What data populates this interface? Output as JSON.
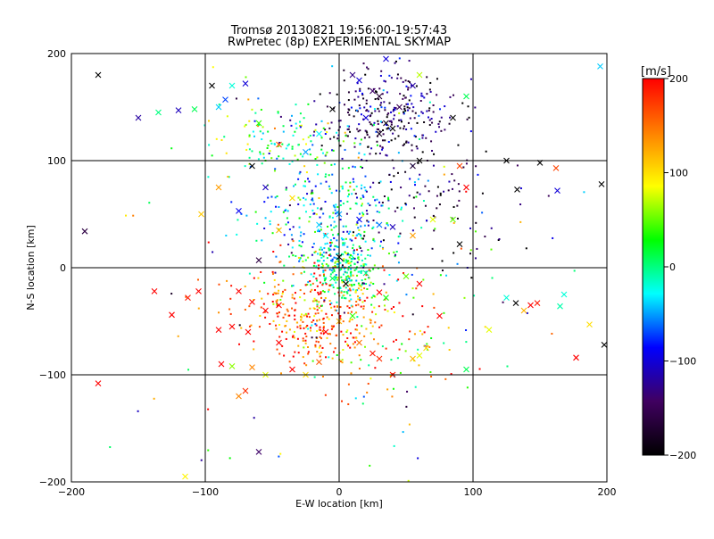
{
  "chart_data": {
    "type": "scatter",
    "title": "Tromsø 20130821 19:56:00-19:57:43",
    "subtitle": "RwPretec (8p) EXPERIMENTAL SKYMAP",
    "xlabel": "E-W location [km]",
    "ylabel": "N-S location [km]",
    "xlim": [
      -200,
      200
    ],
    "ylim": [
      -200,
      200
    ],
    "x_ticks": [
      -200,
      -100,
      0,
      100,
      200
    ],
    "x_tick_labels": [
      "−200",
      "−100",
      "0",
      "100",
      "200"
    ],
    "y_ticks": [
      -200,
      -100,
      0,
      100,
      200
    ],
    "y_tick_labels": [
      "−200",
      "−100",
      "0",
      "100",
      "200"
    ],
    "grid": true,
    "colorbar": {
      "label": "[m/s]",
      "min": -200,
      "max": 200,
      "ticks": [
        200,
        100,
        0,
        -100,
        -200
      ],
      "tick_labels": [
        "200",
        "100",
        "0",
        "−100",
        "−200"
      ],
      "colormap": [
        "#000000",
        "#400060",
        "#0000ff",
        "#00ffff",
        "#00ff00",
        "#ffff00",
        "#ff8000",
        "#ff0000"
      ]
    },
    "marker_legend": "x = large-amplitude echo, dot = echo",
    "crosses": [
      {
        "x": -180,
        "y": 180,
        "v": -200
      },
      {
        "x": -95,
        "y": 170,
        "v": -200
      },
      {
        "x": -80,
        "y": 170,
        "v": -20
      },
      {
        "x": -70,
        "y": 172,
        "v": -100
      },
      {
        "x": -150,
        "y": 140,
        "v": -120
      },
      {
        "x": -135,
        "y": 145,
        "v": 0
      },
      {
        "x": -120,
        "y": 147,
        "v": -110
      },
      {
        "x": -108,
        "y": 148,
        "v": 10
      },
      {
        "x": -90,
        "y": 150,
        "v": -40
      },
      {
        "x": -85,
        "y": 157,
        "v": -70
      },
      {
        "x": -190,
        "y": 34,
        "v": -160
      },
      {
        "x": -65,
        "y": 95,
        "v": -200
      },
      {
        "x": -55,
        "y": 75,
        "v": -110
      },
      {
        "x": -90,
        "y": 75,
        "v": 130
      },
      {
        "x": -75,
        "y": 53,
        "v": -90
      },
      {
        "x": -103,
        "y": 50,
        "v": 110
      },
      {
        "x": -60,
        "y": 7,
        "v": -160
      },
      {
        "x": -45,
        "y": 35,
        "v": 120
      },
      {
        "x": -45,
        "y": 115,
        "v": 160
      },
      {
        "x": -60,
        "y": 135,
        "v": 40
      },
      {
        "x": -35,
        "y": 65,
        "v": 100
      },
      {
        "x": -25,
        "y": 108,
        "v": -50
      },
      {
        "x": -15,
        "y": 125,
        "v": -30
      },
      {
        "x": -5,
        "y": 148,
        "v": -200
      },
      {
        "x": 10,
        "y": 180,
        "v": -130
      },
      {
        "x": 15,
        "y": 175,
        "v": -100
      },
      {
        "x": 25,
        "y": 165,
        "v": -140
      },
      {
        "x": 30,
        "y": 160,
        "v": -170
      },
      {
        "x": 20,
        "y": 140,
        "v": -100
      },
      {
        "x": 35,
        "y": 135,
        "v": -190
      },
      {
        "x": 40,
        "y": 130,
        "v": -200
      },
      {
        "x": 30,
        "y": 125,
        "v": -180
      },
      {
        "x": 45,
        "y": 150,
        "v": -150
      },
      {
        "x": 55,
        "y": 170,
        "v": -120
      },
      {
        "x": 60,
        "y": 180,
        "v": 70
      },
      {
        "x": 35,
        "y": 195,
        "v": -100
      },
      {
        "x": 85,
        "y": 140,
        "v": -210
      },
      {
        "x": 95,
        "y": 160,
        "v": 10
      },
      {
        "x": 60,
        "y": 100,
        "v": -200
      },
      {
        "x": 55,
        "y": 95,
        "v": -170
      },
      {
        "x": 90,
        "y": 95,
        "v": 170
      },
      {
        "x": 125,
        "y": 100,
        "v": -200
      },
      {
        "x": 150,
        "y": 98,
        "v": -200
      },
      {
        "x": 162,
        "y": 93,
        "v": 170
      },
      {
        "x": 95,
        "y": 75,
        "v": 200
      },
      {
        "x": 133,
        "y": 73,
        "v": -200
      },
      {
        "x": 163,
        "y": 72,
        "v": -100
      },
      {
        "x": 196,
        "y": 78,
        "v": -200
      },
      {
        "x": 195,
        "y": 188,
        "v": -40
      },
      {
        "x": 90,
        "y": 22,
        "v": -200
      },
      {
        "x": 85,
        "y": 45,
        "v": 50
      },
      {
        "x": 70,
        "y": 45,
        "v": 80
      },
      {
        "x": 55,
        "y": 30,
        "v": 130
      },
      {
        "x": 40,
        "y": 38,
        "v": -110
      },
      {
        "x": 30,
        "y": 40,
        "v": -60
      },
      {
        "x": 15,
        "y": 45,
        "v": -90
      },
      {
        "x": 0,
        "y": 50,
        "v": -50
      },
      {
        "x": -15,
        "y": 40,
        "v": -40
      },
      {
        "x": -10,
        "y": 30,
        "v": -30
      },
      {
        "x": 0,
        "y": 10,
        "v": -200
      },
      {
        "x": 5,
        "y": -15,
        "v": -200
      },
      {
        "x": 20,
        "y": -5,
        "v": 0
      },
      {
        "x": -5,
        "y": -10,
        "v": 10
      },
      {
        "x": -138,
        "y": -22,
        "v": 200
      },
      {
        "x": -125,
        "y": -44,
        "v": 200
      },
      {
        "x": -113,
        "y": -28,
        "v": 190
      },
      {
        "x": -105,
        "y": -22,
        "v": 200
      },
      {
        "x": -90,
        "y": -58,
        "v": 200
      },
      {
        "x": -80,
        "y": -55,
        "v": 200
      },
      {
        "x": -75,
        "y": -22,
        "v": 200
      },
      {
        "x": -65,
        "y": -32,
        "v": 200
      },
      {
        "x": -68,
        "y": -60,
        "v": 200
      },
      {
        "x": -55,
        "y": -40,
        "v": 200
      },
      {
        "x": -45,
        "y": -35,
        "v": 200
      },
      {
        "x": -88,
        "y": -90,
        "v": 200
      },
      {
        "x": -80,
        "y": -92,
        "v": 60
      },
      {
        "x": -65,
        "y": -93,
        "v": 140
      },
      {
        "x": -55,
        "y": -100,
        "v": 80
      },
      {
        "x": -45,
        "y": -70,
        "v": 200
      },
      {
        "x": -35,
        "y": -95,
        "v": 200
      },
      {
        "x": -25,
        "y": -100,
        "v": 100
      },
      {
        "x": -15,
        "y": -88,
        "v": 160
      },
      {
        "x": -70,
        "y": -115,
        "v": 180
      },
      {
        "x": -75,
        "y": -120,
        "v": 140
      },
      {
        "x": -180,
        "y": -108,
        "v": 200
      },
      {
        "x": -115,
        "y": -195,
        "v": 90
      },
      {
        "x": -60,
        "y": -172,
        "v": -140
      },
      {
        "x": -10,
        "y": -60,
        "v": 200
      },
      {
        "x": 0,
        "y": -50,
        "v": 120
      },
      {
        "x": 10,
        "y": -45,
        "v": 40
      },
      {
        "x": 15,
        "y": -70,
        "v": 150
      },
      {
        "x": 25,
        "y": -80,
        "v": 190
      },
      {
        "x": 30,
        "y": -85,
        "v": 180
      },
      {
        "x": 40,
        "y": -100,
        "v": 190
      },
      {
        "x": 55,
        "y": -85,
        "v": 120
      },
      {
        "x": 60,
        "y": -82,
        "v": 80
      },
      {
        "x": 65,
        "y": -75,
        "v": 100
      },
      {
        "x": 75,
        "y": -45,
        "v": 200
      },
      {
        "x": 95,
        "y": -95,
        "v": 10
      },
      {
        "x": 112,
        "y": -58,
        "v": 80
      },
      {
        "x": 125,
        "y": -28,
        "v": -20
      },
      {
        "x": 132,
        "y": -33,
        "v": -200
      },
      {
        "x": 138,
        "y": -40,
        "v": 120
      },
      {
        "x": 143,
        "y": -35,
        "v": 200
      },
      {
        "x": 148,
        "y": -33,
        "v": 190
      },
      {
        "x": 165,
        "y": -36,
        "v": -10
      },
      {
        "x": 168,
        "y": -25,
        "v": -20
      },
      {
        "x": 187,
        "y": -53,
        "v": 100
      },
      {
        "x": 177,
        "y": -84,
        "v": 200
      },
      {
        "x": 198,
        "y": -72,
        "v": -200
      },
      {
        "x": 30,
        "y": -23,
        "v": 200
      },
      {
        "x": 35,
        "y": -28,
        "v": 30
      },
      {
        "x": 50,
        "y": -8,
        "v": 50
      },
      {
        "x": 60,
        "y": -15,
        "v": 200
      }
    ],
    "dot_clusters": [
      {
        "cx": 35,
        "cy": 140,
        "sx": 25,
        "sy": 22,
        "v": -150,
        "sv": 45,
        "n": 300
      },
      {
        "cx": -5,
        "cy": 48,
        "sx": 30,
        "sy": 25,
        "v": -40,
        "sv": 55,
        "n": 260
      },
      {
        "cx": 2,
        "cy": 0,
        "sx": 14,
        "sy": 16,
        "v": 0,
        "sv": 40,
        "n": 260
      },
      {
        "cx": -20,
        "cy": -45,
        "sx": 28,
        "sy": 25,
        "v": 160,
        "sv": 50,
        "n": 340
      },
      {
        "cx": -40,
        "cy": 120,
        "sx": 30,
        "sy": 18,
        "v": 20,
        "sv": 55,
        "n": 130
      },
      {
        "cx": 60,
        "cy": 55,
        "sx": 30,
        "sy": 30,
        "v": -150,
        "sv": 45,
        "n": 90
      },
      {
        "cx": 25,
        "cy": -60,
        "sx": 35,
        "sy": 35,
        "v": 80,
        "sv": 80,
        "n": 120
      },
      {
        "cx": 0,
        "cy": 0,
        "sx": 90,
        "sy": 100,
        "v": 0,
        "sv": 120,
        "n": 110
      }
    ]
  }
}
